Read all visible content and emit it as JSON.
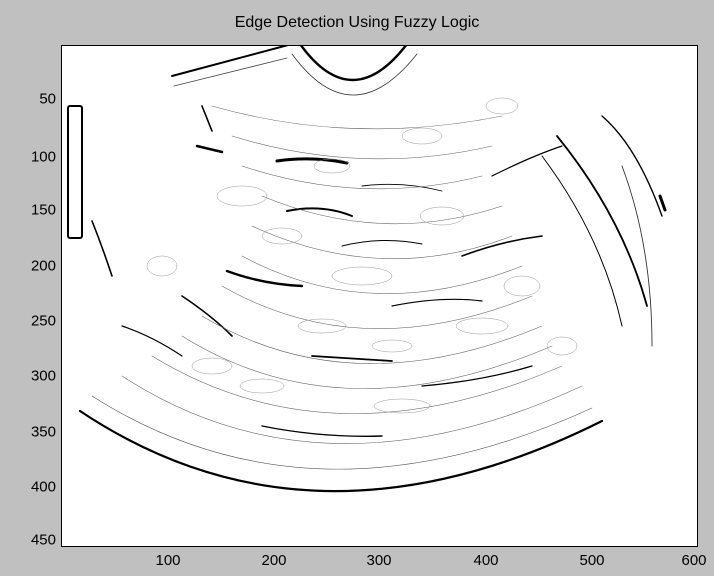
{
  "figure": {
    "title": "Edge Detection Using Fuzzy Logic",
    "background_color": "#c0c0c0",
    "axes_color": "#ffffff",
    "ink_color": "#000000"
  },
  "axes": {
    "xticks": [
      "100",
      "200",
      "300",
      "400",
      "500",
      "600"
    ],
    "yticks": [
      "50",
      "100",
      "150",
      "200",
      "250",
      "300",
      "350",
      "400",
      "450"
    ]
  },
  "image": {
    "description_type": "edge-map of ultrasound fan-shaped scan",
    "x_range": [
      0,
      600
    ],
    "y_range": [
      0,
      460
    ]
  }
}
